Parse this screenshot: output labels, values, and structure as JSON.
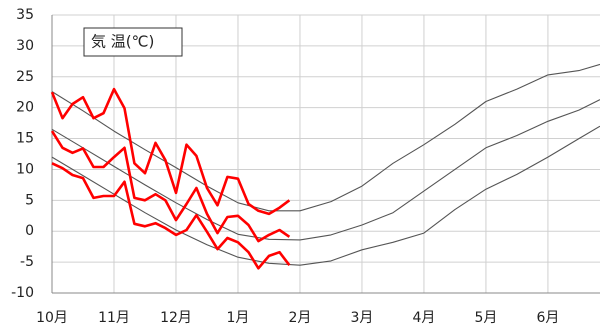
{
  "chart_data": {
    "type": "line",
    "title": "気 温(℃)",
    "xlim": [
      0,
      8.84
    ],
    "ylim": [
      -10,
      35
    ],
    "xticks": [
      {
        "value": 0,
        "label": "10月"
      },
      {
        "value": 1,
        "label": "11月"
      },
      {
        "value": 2,
        "label": "12月"
      },
      {
        "value": 3,
        "label": "1月"
      },
      {
        "value": 4,
        "label": "2月"
      },
      {
        "value": 5,
        "label": "3月"
      },
      {
        "value": 6,
        "label": "4月"
      },
      {
        "value": 7,
        "label": "5月"
      },
      {
        "value": 8,
        "label": "6月"
      }
    ],
    "yticks": [
      -10,
      -5,
      0,
      5,
      10,
      15,
      20,
      25,
      30,
      35
    ],
    "grid": true,
    "series": [
      {
        "color": "#555555",
        "x": [
          0,
          0.5,
          1,
          1.5,
          2,
          2.5,
          3,
          3.5,
          4,
          4.5,
          5,
          5.5,
          6,
          6.5,
          7,
          7.5,
          8,
          8.5,
          8.84
        ],
        "values": [
          22.6,
          19.5,
          16.2,
          13.2,
          10.3,
          7.3,
          4.6,
          3.3,
          3.3,
          4.8,
          7.3,
          11,
          14,
          17.3,
          21,
          23,
          25.3,
          26,
          27
        ]
      },
      {
        "color": "#555555",
        "x": [
          0,
          0.5,
          1,
          1.5,
          2,
          2.5,
          3,
          3.5,
          4,
          4.5,
          5,
          5.5,
          6,
          6.5,
          7,
          7.5,
          8,
          8.5,
          8.84
        ],
        "values": [
          16.5,
          13.5,
          10.5,
          7.5,
          4.6,
          1.9,
          -0.5,
          -1.3,
          -1.4,
          -0.6,
          1.0,
          3.0,
          6.5,
          10.0,
          13.5,
          15.5,
          17.8,
          19.6,
          21.3
        ]
      },
      {
        "color": "#555555",
        "x": [
          0,
          0.5,
          1,
          1.5,
          2,
          2.5,
          3,
          3.5,
          4,
          4.5,
          5,
          5.5,
          6,
          6.5,
          7,
          7.5,
          8,
          8.5,
          8.84
        ],
        "values": [
          12,
          9,
          6,
          3,
          0.2,
          -2.2,
          -4.2,
          -5.2,
          -5.5,
          -4.8,
          -3.0,
          -1.8,
          -0.3,
          3.5,
          6.8,
          9.2,
          12,
          15,
          17
        ]
      },
      {
        "color": "#ff0000",
        "x": [
          0,
          0.17,
          0.33,
          0.5,
          0.67,
          0.83,
          1,
          1.17,
          1.33,
          1.5,
          1.67,
          1.83,
          2,
          2.17,
          2.33,
          2.5,
          2.67,
          2.83,
          3,
          3.17,
          3.33,
          3.5,
          3.67,
          3.83
        ],
        "values": [
          22.5,
          18.3,
          20.6,
          21.7,
          18.3,
          19.1,
          23.0,
          19.9,
          11.0,
          9.4,
          14.3,
          11.5,
          6.2,
          14.0,
          12.2,
          7.0,
          4.2,
          8.8,
          8.5,
          4.4,
          3.3,
          2.8,
          3.8,
          5.0
        ]
      },
      {
        "color": "#ff0000",
        "x": [
          0,
          0.17,
          0.33,
          0.5,
          0.67,
          0.83,
          1,
          1.17,
          1.33,
          1.5,
          1.67,
          1.83,
          2,
          2.17,
          2.33,
          2.5,
          2.67,
          2.83,
          3,
          3.17,
          3.33,
          3.5,
          3.67,
          3.83
        ],
        "values": [
          16.2,
          13.5,
          12.7,
          13.4,
          10.4,
          10.4,
          12.0,
          13.5,
          5.4,
          5.0,
          6.0,
          5.0,
          1.8,
          4.4,
          7.0,
          2.8,
          -0.3,
          2.3,
          2.5,
          1.0,
          -1.6,
          -0.6,
          0.2,
          -0.9
        ]
      },
      {
        "color": "#ff0000",
        "x": [
          0,
          0.17,
          0.33,
          0.5,
          0.67,
          0.83,
          1,
          1.17,
          1.33,
          1.5,
          1.67,
          1.83,
          2,
          2.17,
          2.33,
          2.5,
          2.67,
          2.83,
          3,
          3.17,
          3.33,
          3.5,
          3.67,
          3.83
        ],
        "values": [
          11.0,
          10.2,
          9.1,
          8.6,
          5.4,
          5.7,
          5.7,
          8.0,
          1.2,
          0.8,
          1.3,
          0.5,
          -0.6,
          0.2,
          2.6,
          -0.1,
          -2.9,
          -1.1,
          -1.8,
          -3.4,
          -6.0,
          -4.0,
          -3.4,
          -5.5
        ]
      }
    ]
  }
}
